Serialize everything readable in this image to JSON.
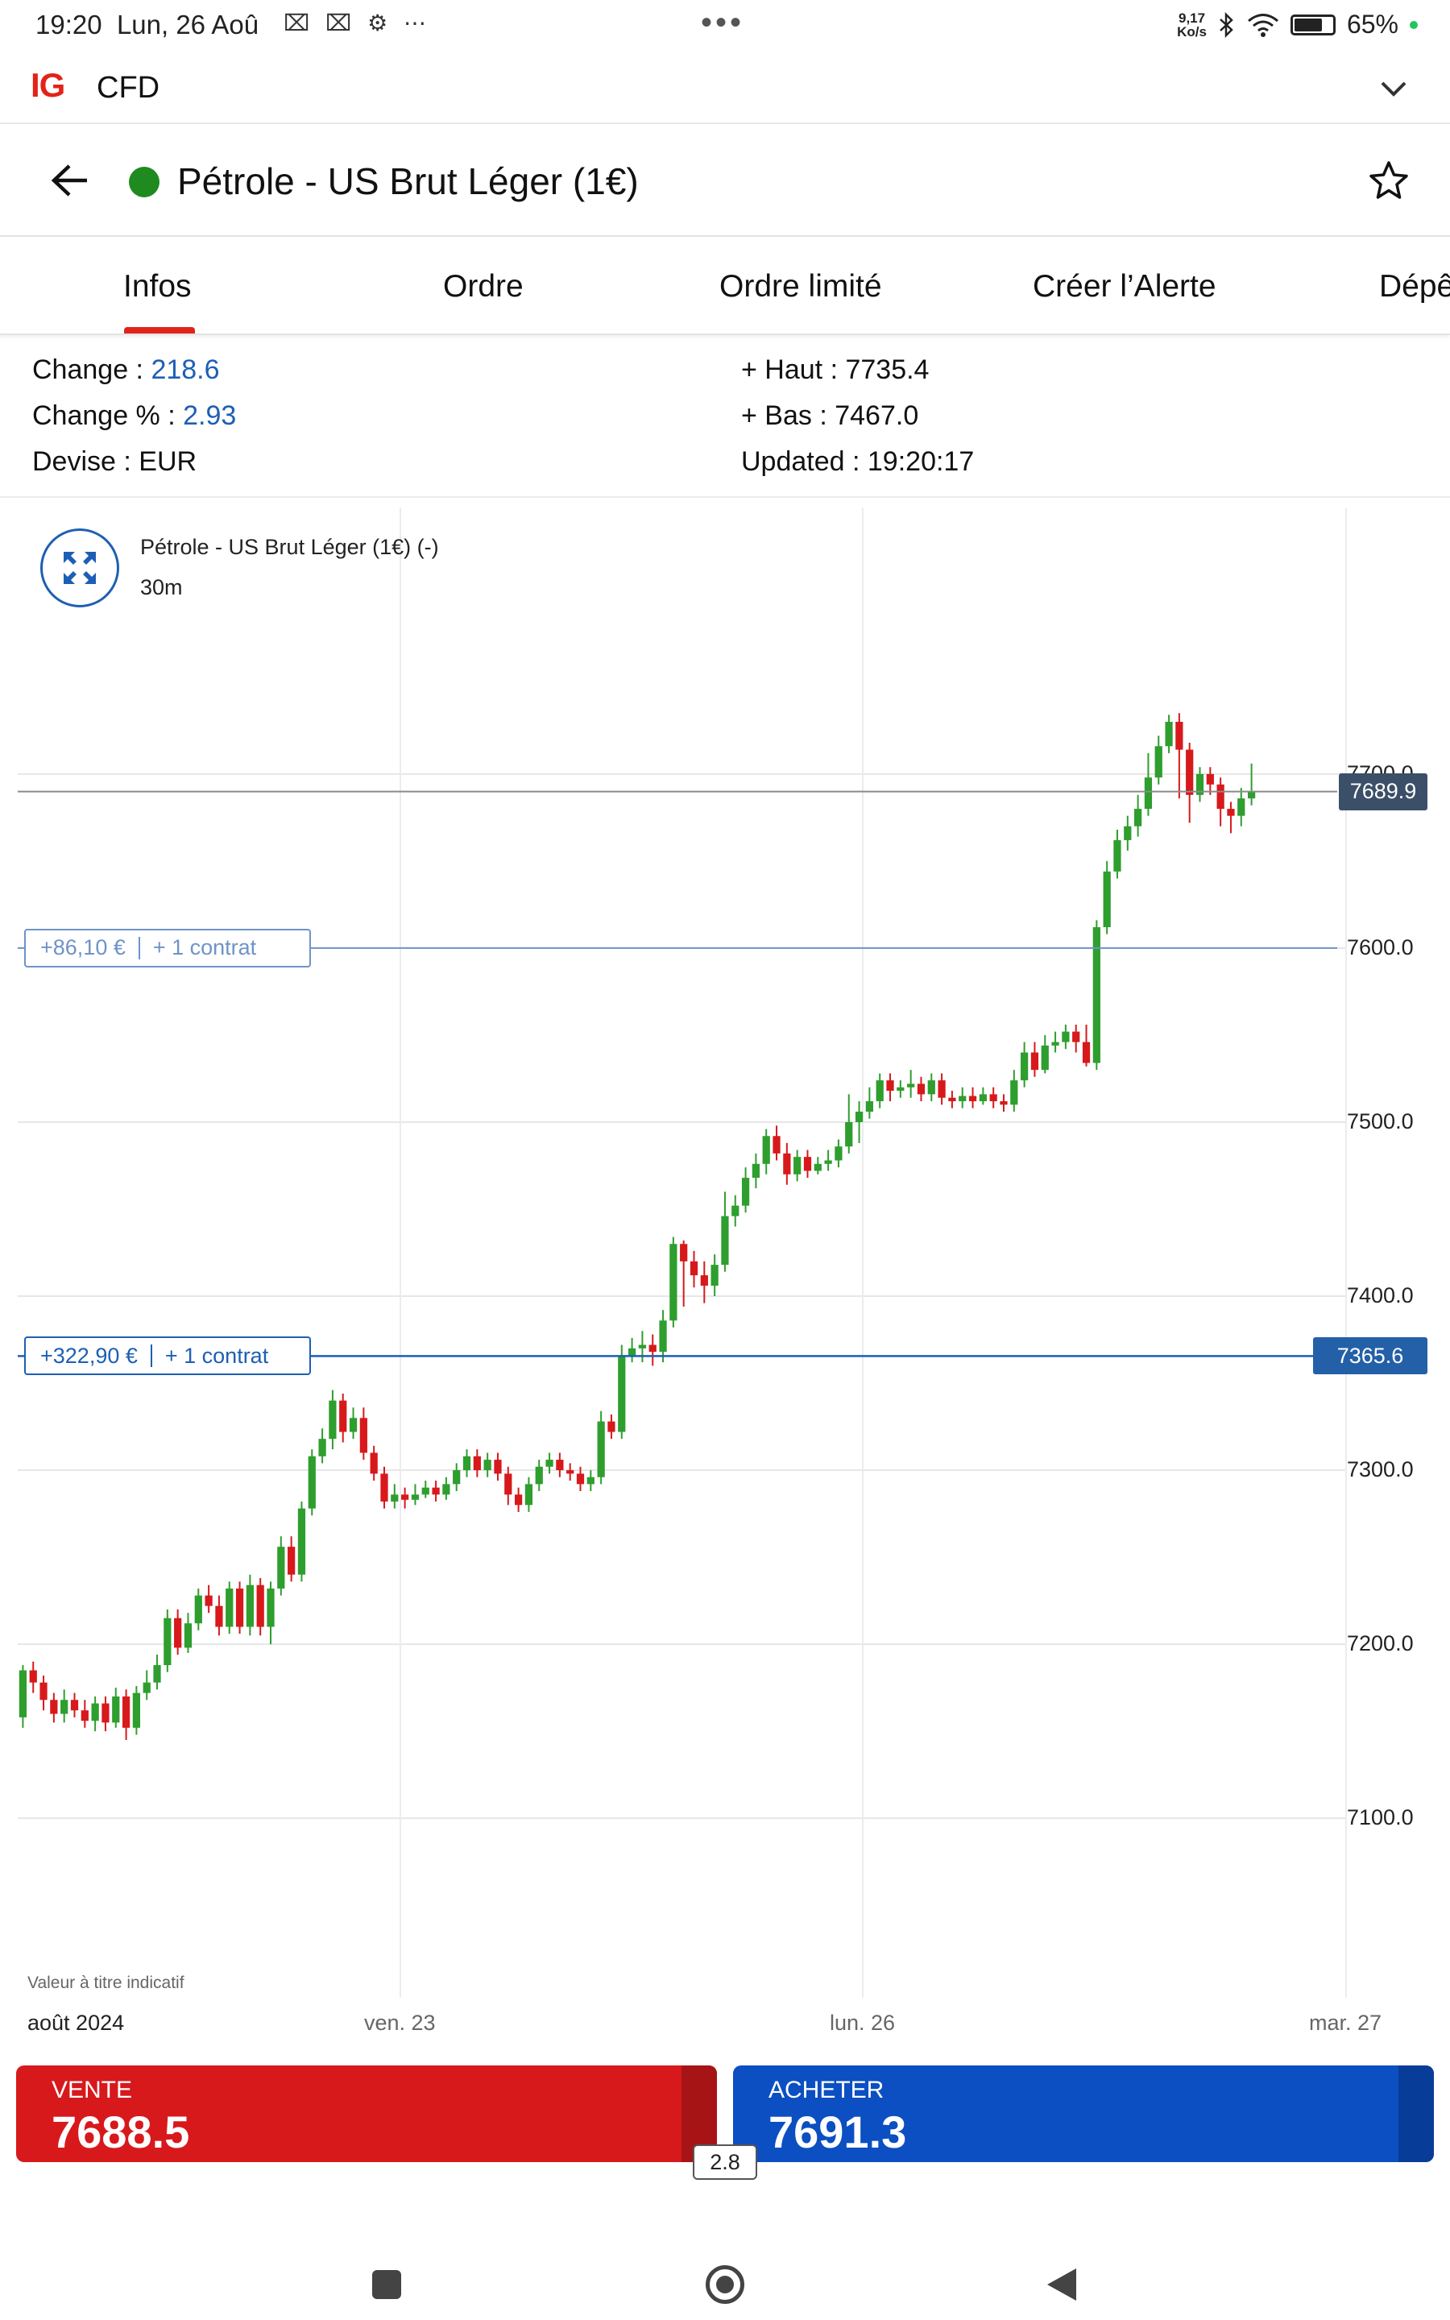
{
  "status_bar": {
    "time": "19:20",
    "date": "Lun, 26 Aoû",
    "left_icons": "⌧ ⌧ ⚙ ⋯",
    "center_dots": "•••",
    "speed_value": "9,17",
    "speed_unit": "Ko/s",
    "battery": "65%"
  },
  "app_header": {
    "logo": "IG",
    "account_type": "CFD"
  },
  "instrument": {
    "title": "Pétrole - US Brut Léger (1€)",
    "status_color": "#1f8a1f"
  },
  "tabs": [
    {
      "label": "Infos",
      "active": true
    },
    {
      "label": "Ordre",
      "active": false
    },
    {
      "label": "Ordre limité",
      "active": false
    },
    {
      "label": "Créer l’Alerte",
      "active": false
    },
    {
      "label": "Dépê",
      "active": false
    }
  ],
  "info": {
    "change_label": "Change : ",
    "change_value": "218.6",
    "change_pct_label": "Change % : ",
    "change_pct_value": "2.93",
    "currency_label": "Devise : ",
    "currency_value": "EUR",
    "high_label": "+ Haut : ",
    "high_value": "7735.4",
    "low_label": "+ Bas : ",
    "low_value": "7467.0",
    "updated_label": "Updated : ",
    "updated_value": "19:20:17"
  },
  "chart_header": {
    "name": "Pétrole - US Brut Léger (1€) (-)",
    "interval": "30m"
  },
  "positions": [
    {
      "pnl": "+86,10 €",
      "size": "+ 1 contrat",
      "level": 7600.0
    },
    {
      "pnl": "+322,90 €",
      "size": "+ 1 contrat",
      "level": 7365.6,
      "level_label": "7365.6"
    }
  ],
  "current_price_label": "7689.9",
  "disclaimer": "Valeur à titre indicatif",
  "x_month": "août 2024",
  "chart_data": {
    "type": "candlestick",
    "y_ticks": [
      "7700.0",
      "7600.0",
      "7500.0",
      "7400.0",
      "7300.0",
      "7200.0",
      "7100.0"
    ],
    "y_tick_values": [
      7700,
      7600,
      7500,
      7400,
      7300,
      7200,
      7100
    ],
    "ylim": [
      7020,
      7830
    ],
    "x_tick_labels": [
      "ven. 23",
      "lun. 26",
      "mar. 27"
    ],
    "current_price": 7689.9,
    "colors": {
      "up": "#2e9e2e",
      "down": "#d7191c"
    },
    "candles": [
      [
        7158,
        7185,
        7152,
        7188
      ],
      [
        7185,
        7178,
        7172,
        7190
      ],
      [
        7178,
        7168,
        7162,
        7182
      ],
      [
        7168,
        7160,
        7155,
        7172
      ],
      [
        7160,
        7168,
        7155,
        7174
      ],
      [
        7168,
        7162,
        7158,
        7172
      ],
      [
        7162,
        7156,
        7152,
        7168
      ],
      [
        7156,
        7166,
        7150,
        7170
      ],
      [
        7166,
        7155,
        7150,
        7170
      ],
      [
        7155,
        7170,
        7152,
        7175
      ],
      [
        7170,
        7152,
        7145,
        7174
      ],
      [
        7152,
        7172,
        7148,
        7176
      ],
      [
        7172,
        7178,
        7168,
        7185
      ],
      [
        7178,
        7188,
        7174,
        7194
      ],
      [
        7188,
        7215,
        7184,
        7220
      ],
      [
        7215,
        7198,
        7194,
        7220
      ],
      [
        7198,
        7212,
        7195,
        7218
      ],
      [
        7212,
        7228,
        7208,
        7232
      ],
      [
        7228,
        7222,
        7218,
        7234
      ],
      [
        7222,
        7210,
        7205,
        7228
      ],
      [
        7210,
        7232,
        7206,
        7236
      ],
      [
        7232,
        7210,
        7206,
        7236
      ],
      [
        7210,
        7234,
        7205,
        7240
      ],
      [
        7234,
        7210,
        7205,
        7238
      ],
      [
        7210,
        7232,
        7200,
        7236
      ],
      [
        7232,
        7256,
        7228,
        7262
      ],
      [
        7256,
        7240,
        7236,
        7262
      ],
      [
        7240,
        7278,
        7236,
        7282
      ],
      [
        7278,
        7308,
        7274,
        7312
      ],
      [
        7308,
        7318,
        7304,
        7324
      ],
      [
        7318,
        7340,
        7312,
        7346
      ],
      [
        7340,
        7322,
        7316,
        7344
      ],
      [
        7322,
        7330,
        7318,
        7336
      ],
      [
        7330,
        7310,
        7306,
        7336
      ],
      [
        7310,
        7298,
        7294,
        7314
      ],
      [
        7298,
        7282,
        7278,
        7302
      ],
      [
        7282,
        7286,
        7278,
        7292
      ],
      [
        7286,
        7283,
        7278,
        7290
      ],
      [
        7283,
        7286,
        7280,
        7292
      ],
      [
        7286,
        7290,
        7284,
        7294
      ],
      [
        7290,
        7286,
        7282,
        7294
      ],
      [
        7286,
        7292,
        7283,
        7296
      ],
      [
        7292,
        7300,
        7288,
        7304
      ],
      [
        7300,
        7308,
        7296,
        7312
      ],
      [
        7308,
        7300,
        7296,
        7312
      ],
      [
        7300,
        7306,
        7296,
        7310
      ],
      [
        7306,
        7298,
        7294,
        7310
      ],
      [
        7298,
        7286,
        7280,
        7302
      ],
      [
        7286,
        7280,
        7276,
        7290
      ],
      [
        7280,
        7292,
        7276,
        7296
      ],
      [
        7292,
        7302,
        7288,
        7306
      ],
      [
        7302,
        7306,
        7298,
        7310
      ],
      [
        7306,
        7300,
        7296,
        7310
      ],
      [
        7300,
        7298,
        7294,
        7304
      ],
      [
        7298,
        7292,
        7288,
        7302
      ],
      [
        7292,
        7296,
        7288,
        7300
      ],
      [
        7296,
        7328,
        7292,
        7334
      ],
      [
        7328,
        7322,
        7318,
        7332
      ],
      [
        7322,
        7366,
        7318,
        7372
      ],
      [
        7366,
        7370,
        7362,
        7376
      ],
      [
        7370,
        7372,
        7362,
        7380
      ],
      [
        7372,
        7368,
        7360,
        7378
      ],
      [
        7368,
        7386,
        7362,
        7392
      ],
      [
        7386,
        7430,
        7382,
        7434
      ],
      [
        7430,
        7420,
        7394,
        7432
      ],
      [
        7420,
        7412,
        7405,
        7426
      ],
      [
        7412,
        7406,
        7396,
        7420
      ],
      [
        7406,
        7418,
        7400,
        7424
      ],
      [
        7418,
        7446,
        7414,
        7460
      ],
      [
        7446,
        7452,
        7440,
        7458
      ],
      [
        7452,
        7468,
        7448,
        7474
      ],
      [
        7468,
        7476,
        7462,
        7482
      ],
      [
        7476,
        7492,
        7470,
        7496
      ],
      [
        7492,
        7482,
        7478,
        7498
      ],
      [
        7482,
        7470,
        7464,
        7488
      ],
      [
        7470,
        7480,
        7466,
        7484
      ],
      [
        7480,
        7472,
        7468,
        7484
      ],
      [
        7472,
        7476,
        7470,
        7480
      ],
      [
        7476,
        7478,
        7472,
        7484
      ],
      [
        7478,
        7486,
        7474,
        7490
      ],
      [
        7486,
        7500,
        7482,
        7516
      ],
      [
        7500,
        7506,
        7488,
        7512
      ],
      [
        7506,
        7512,
        7502,
        7520
      ],
      [
        7512,
        7524,
        7508,
        7528
      ],
      [
        7524,
        7518,
        7512,
        7528
      ],
      [
        7518,
        7520,
        7514,
        7524
      ],
      [
        7520,
        7522,
        7514,
        7530
      ],
      [
        7522,
        7516,
        7512,
        7526
      ],
      [
        7516,
        7524,
        7512,
        7528
      ],
      [
        7524,
        7514,
        7510,
        7528
      ],
      [
        7514,
        7512,
        7508,
        7518
      ],
      [
        7512,
        7515,
        7508,
        7520
      ],
      [
        7515,
        7512,
        7508,
        7520
      ],
      [
        7512,
        7516,
        7510,
        7520
      ],
      [
        7516,
        7512,
        7508,
        7520
      ],
      [
        7512,
        7510,
        7506,
        7516
      ],
      [
        7510,
        7524,
        7506,
        7530
      ],
      [
        7524,
        7540,
        7520,
        7546
      ],
      [
        7540,
        7530,
        7526,
        7546
      ],
      [
        7530,
        7544,
        7528,
        7550
      ],
      [
        7544,
        7546,
        7540,
        7552
      ],
      [
        7546,
        7552,
        7542,
        7556
      ],
      [
        7552,
        7546,
        7540,
        7556
      ],
      [
        7546,
        7534,
        7532,
        7556
      ],
      [
        7534,
        7612,
        7530,
        7616
      ],
      [
        7612,
        7644,
        7608,
        7650
      ],
      [
        7644,
        7662,
        7640,
        7668
      ],
      [
        7662,
        7670,
        7656,
        7676
      ],
      [
        7670,
        7680,
        7664,
        7688
      ],
      [
        7680,
        7698,
        7676,
        7712
      ],
      [
        7698,
        7716,
        7694,
        7722
      ],
      [
        7716,
        7730,
        7712,
        7734
      ],
      [
        7730,
        7714,
        7686,
        7735
      ],
      [
        7714,
        7688,
        7672,
        7718
      ],
      [
        7688,
        7700,
        7684,
        7704
      ],
      [
        7700,
        7694,
        7688,
        7704
      ],
      [
        7694,
        7680,
        7670,
        7698
      ],
      [
        7680,
        7676,
        7666,
        7684
      ],
      [
        7676,
        7686,
        7670,
        7692
      ],
      [
        7686,
        7690,
        7682,
        7706
      ]
    ]
  }
}
